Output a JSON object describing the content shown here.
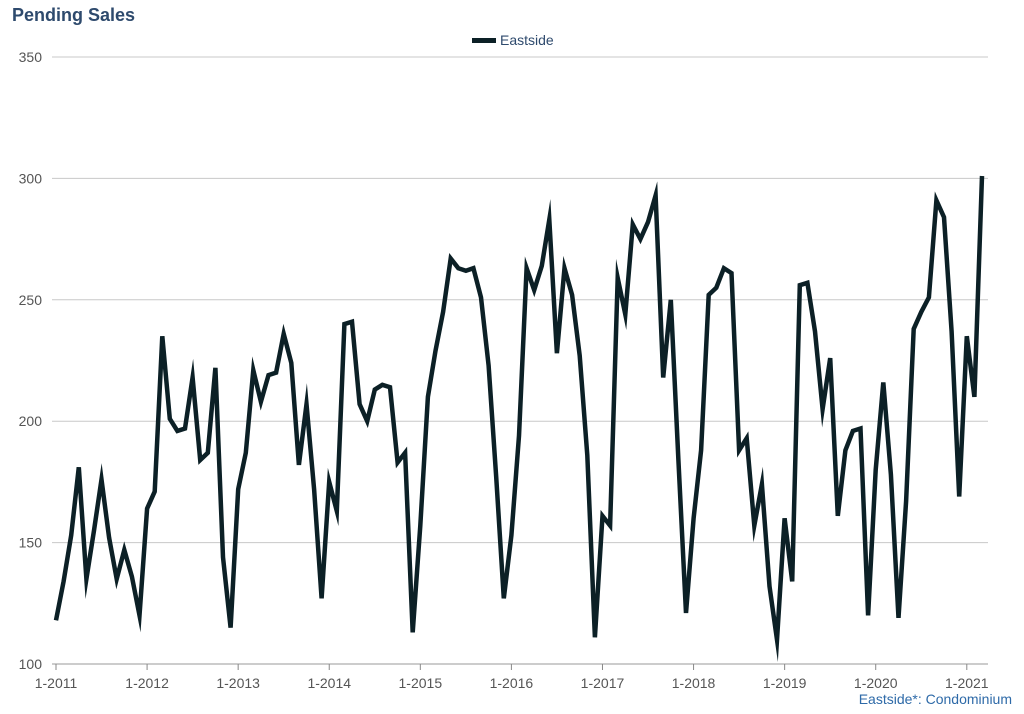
{
  "header": {
    "title": "Pending Sales"
  },
  "footnote": "Eastside*: Condominium",
  "chart_data": {
    "type": "line",
    "title": "Pending Sales",
    "xlabel": "",
    "ylabel": "",
    "ylim": [
      100,
      350
    ],
    "yticks": [
      100,
      150,
      200,
      250,
      300,
      350
    ],
    "xtick_labels": [
      "1-2011",
      "1-2012",
      "1-2013",
      "1-2014",
      "1-2015",
      "1-2016",
      "1-2017",
      "1-2018",
      "1-2019",
      "1-2020",
      "1-2021"
    ],
    "grid": true,
    "legend_position": "top-center",
    "series": [
      {
        "name": "Eastside",
        "color": "#0c2026",
        "values": [
          118,
          134,
          153,
          181,
          135,
          155,
          176,
          152,
          135,
          147,
          136,
          120,
          164,
          171,
          235,
          201,
          196,
          197,
          218,
          184,
          187,
          222,
          144,
          115,
          172,
          187,
          221,
          208,
          219,
          220,
          236,
          224,
          182,
          207,
          172,
          127,
          175,
          163,
          240,
          241,
          207,
          200,
          213,
          215,
          214,
          183,
          187,
          113,
          157,
          210,
          229,
          245,
          267,
          263,
          262,
          263,
          251,
          223,
          177,
          127,
          153,
          194,
          263,
          254,
          264,
          283,
          228,
          263,
          252,
          227,
          186,
          111,
          161,
          157,
          259,
          244,
          281,
          275,
          282,
          293,
          218,
          250,
          184,
          121,
          160,
          188,
          252,
          255,
          263,
          261,
          188,
          193,
          157,
          174,
          132,
          110,
          160,
          134,
          256,
          257,
          237,
          205,
          226,
          161,
          188,
          196,
          197,
          120,
          180,
          216,
          178,
          119,
          167,
          238,
          245,
          251,
          291,
          284,
          237,
          169,
          235,
          210,
          301
        ]
      }
    ]
  }
}
